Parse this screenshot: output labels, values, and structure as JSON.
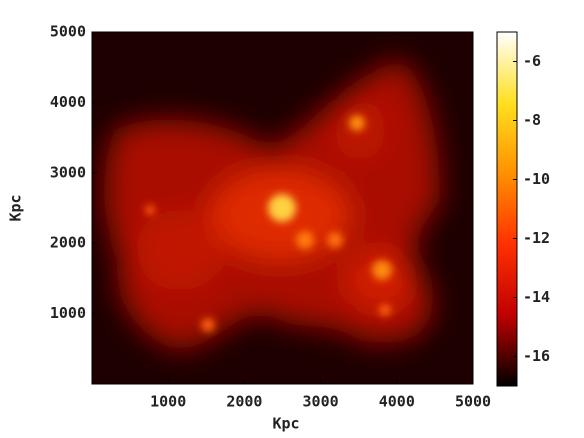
{
  "chart_data": {
    "type": "heatmap",
    "xlabel": "Kpc",
    "ylabel": "Kpc",
    "xlim": [
      0,
      5000
    ],
    "ylim": [
      0,
      5000
    ],
    "xticks": [
      1000,
      2000,
      3000,
      4000,
      5000
    ],
    "yticks": [
      1000,
      2000,
      3000,
      4000,
      5000
    ],
    "colorbar": {
      "colormap": "hot",
      "clim": [
        -17,
        -5
      ],
      "ticks": [
        -6,
        -8,
        -10,
        -12,
        -14,
        -16
      ]
    }
  }
}
